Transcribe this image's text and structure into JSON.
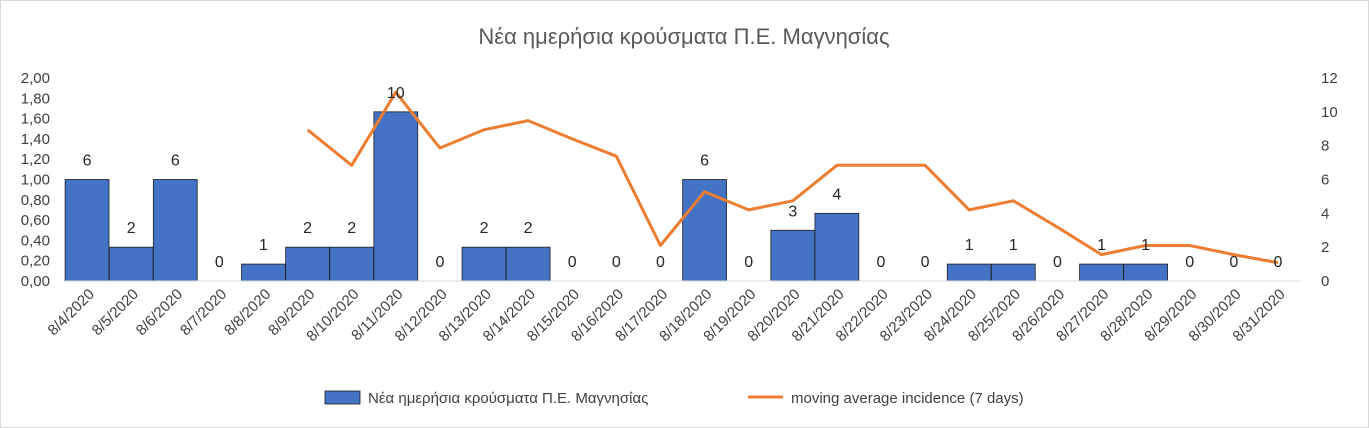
{
  "chart_data": {
    "type": "bar",
    "title": "Νέα ημερήσια κρούσματα Π.Ε. Μαγνησίας",
    "categories": [
      "8/4/2020",
      "8/5/2020",
      "8/6/2020",
      "8/7/2020",
      "8/8/2020",
      "8/9/2020",
      "8/10/2020",
      "8/11/2020",
      "8/12/2020",
      "8/13/2020",
      "8/14/2020",
      "8/15/2020",
      "8/16/2020",
      "8/17/2020",
      "8/18/2020",
      "8/19/2020",
      "8/20/2020",
      "8/21/2020",
      "8/22/2020",
      "8/23/2020",
      "8/24/2020",
      "8/25/2020",
      "8/26/2020",
      "8/27/2020",
      "8/28/2020",
      "8/29/2020",
      "8/30/2020",
      "8/31/2020"
    ],
    "series": [
      {
        "name": "Νέα ημερήσια κρούσματα Π.Ε. Μαγνησίας",
        "type": "bar",
        "axis": "right",
        "color": "#4472C4",
        "values": [
          6,
          2,
          6,
          0,
          1,
          2,
          2,
          10,
          0,
          2,
          2,
          0,
          0,
          0,
          6,
          0,
          3,
          4,
          0,
          0,
          1,
          1,
          0,
          1,
          1,
          0,
          0,
          0
        ],
        "data_labels": [
          "6",
          "2",
          "6",
          "0",
          "1",
          "2",
          "2",
          "10",
          "0",
          "2",
          "2",
          "0",
          "0",
          "0",
          "6",
          "0",
          "3",
          "4",
          "0",
          "0",
          "1",
          "1",
          "0",
          "1",
          "1",
          "0",
          "0",
          "0"
        ]
      },
      {
        "name": "moving average incidence (7 days)",
        "type": "line",
        "axis": "left",
        "color": "#ED7D31",
        "values": [
          null,
          null,
          null,
          null,
          null,
          1.49,
          1.14,
          1.86,
          1.31,
          1.49,
          1.58,
          1.4,
          1.23,
          0.35,
          0.88,
          0.7,
          0.79,
          1.14,
          1.14,
          1.14,
          0.7,
          0.79,
          0.53,
          0.26,
          0.35,
          0.35,
          0.26,
          0.18
        ]
      }
    ],
    "y_left": {
      "ylim": [
        0,
        2
      ],
      "ticks": [
        "0,00",
        "0,20",
        "0,40",
        "0,60",
        "0,80",
        "1,00",
        "1,20",
        "1,40",
        "1,60",
        "1,80",
        "2,00"
      ]
    },
    "y_right": {
      "ylim": [
        0,
        12
      ],
      "ticks": [
        "0",
        "2",
        "4",
        "6",
        "8",
        "10",
        "12"
      ]
    },
    "grid": false,
    "legend": "bottom"
  }
}
